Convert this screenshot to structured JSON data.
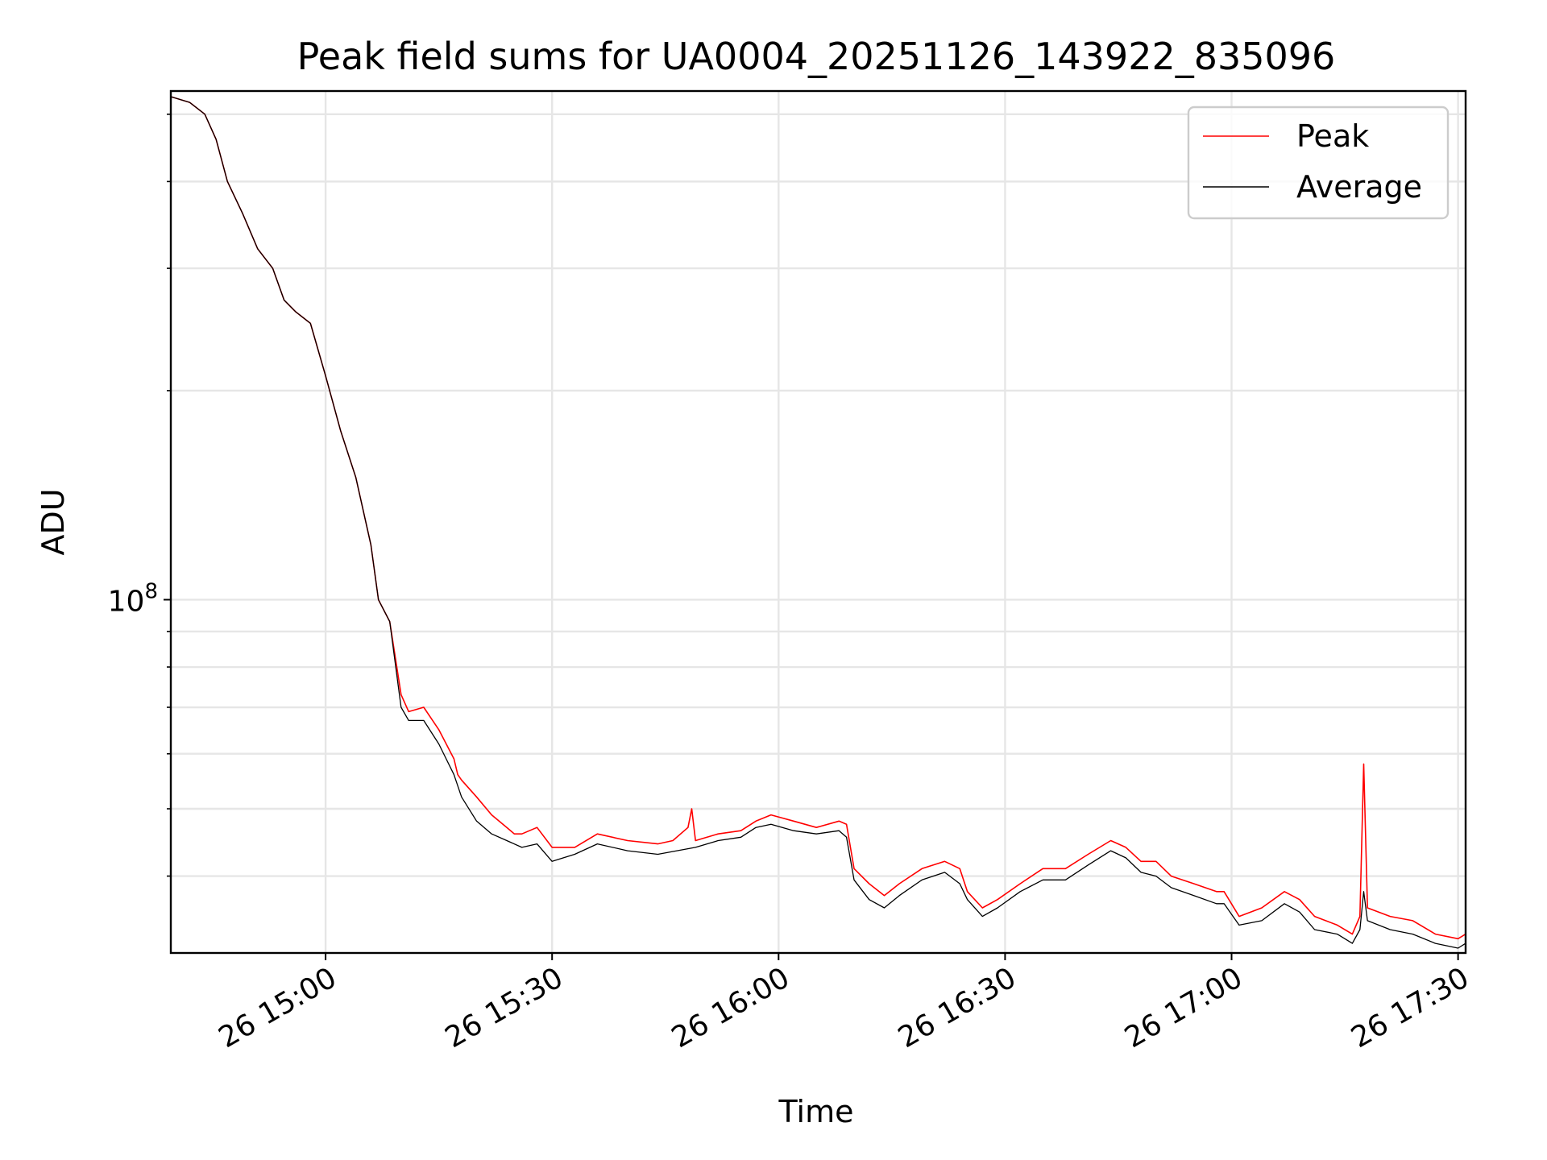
{
  "chart_data": {
    "type": "line",
    "title": "Peak field sums for UA0004_20251126_143922_835096",
    "xlabel": "Time",
    "ylabel": "ADU",
    "yscale": "log",
    "grid": true,
    "grid_minor": true,
    "legend_position": "top-right",
    "x_range": [
      "2025-11-26 14:39:30",
      "2025-11-26 17:31:00"
    ],
    "y_range": [
      31000000,
      540000000
    ],
    "x_ticks": [
      {
        "value": "2025-11-26 15:00",
        "label": "26 15:00"
      },
      {
        "value": "2025-11-26 15:30",
        "label": "26 15:30"
      },
      {
        "value": "2025-11-26 16:00",
        "label": "26 16:00"
      },
      {
        "value": "2025-11-26 16:30",
        "label": "26 16:30"
      },
      {
        "value": "2025-11-26 17:00",
        "label": "26 17:00"
      },
      {
        "value": "2025-11-26 17:30",
        "label": "26 17:30"
      }
    ],
    "y_major_ticks": [
      {
        "value": 100000000,
        "label_base": "10",
        "label_exp": "8"
      }
    ],
    "y_minor_ticks": [
      40000000,
      50000000,
      60000000,
      70000000,
      80000000,
      90000000,
      200000000,
      300000000,
      400000000,
      500000000
    ],
    "series": [
      {
        "name": "Peak",
        "color": "#ff0000",
        "x": [
          "2025-11-26 14:39:30",
          "2025-11-26 14:42:00",
          "2025-11-26 14:44:00",
          "2025-11-26 14:45:30",
          "2025-11-26 14:47:00",
          "2025-11-26 14:49:00",
          "2025-11-26 14:51:00",
          "2025-11-26 14:53:00",
          "2025-11-26 14:54:30",
          "2025-11-26 14:56:00",
          "2025-11-26 14:58:00",
          "2025-11-26 15:00:00",
          "2025-11-26 15:02:00",
          "2025-11-26 15:04:00",
          "2025-11-26 15:06:00",
          "2025-11-26 15:07:00",
          "2025-11-26 15:08:30",
          "2025-11-26 15:10:00",
          "2025-11-26 15:11:00",
          "2025-11-26 15:13:00",
          "2025-11-26 15:15:00",
          "2025-11-26 15:17:00",
          "2025-11-26 15:17:30",
          "2025-11-26 15:18:00",
          "2025-11-26 15:20:00",
          "2025-11-26 15:22:00",
          "2025-11-26 15:24:00",
          "2025-11-26 15:25:00",
          "2025-11-26 15:26:00",
          "2025-11-26 15:28:00",
          "2025-11-26 15:30:00",
          "2025-11-26 15:33:00",
          "2025-11-26 15:36:00",
          "2025-11-26 15:40:00",
          "2025-11-26 15:44:00",
          "2025-11-26 15:46:00",
          "2025-11-26 15:48:00",
          "2025-11-26 15:48:30",
          "2025-11-26 15:49:00",
          "2025-11-26 15:52:00",
          "2025-11-26 15:55:00",
          "2025-11-26 15:57:00",
          "2025-11-26 15:59:00",
          "2025-11-26 16:02:00",
          "2025-11-26 16:05:00",
          "2025-11-26 16:08:00",
          "2025-11-26 16:09:00",
          "2025-11-26 16:10:00",
          "2025-11-26 16:12:00",
          "2025-11-26 16:14:00",
          "2025-11-26 16:16:00",
          "2025-11-26 16:19:00",
          "2025-11-26 16:22:00",
          "2025-11-26 16:24:00",
          "2025-11-26 16:25:00",
          "2025-11-26 16:27:00",
          "2025-11-26 16:29:00",
          "2025-11-26 16:32:00",
          "2025-11-26 16:35:00",
          "2025-11-26 16:38:00",
          "2025-11-26 16:41:00",
          "2025-11-26 16:44:00",
          "2025-11-26 16:46:00",
          "2025-11-26 16:48:00",
          "2025-11-26 16:50:00",
          "2025-11-26 16:52:00",
          "2025-11-26 16:55:00",
          "2025-11-26 16:58:00",
          "2025-11-26 16:59:00",
          "2025-11-26 17:01:00",
          "2025-11-26 17:04:00",
          "2025-11-26 17:07:00",
          "2025-11-26 17:09:00",
          "2025-11-26 17:11:00",
          "2025-11-26 17:14:00",
          "2025-11-26 17:16:00",
          "2025-11-26 17:17:00",
          "2025-11-26 17:17:30",
          "2025-11-26 17:18:00",
          "2025-11-26 17:21:00",
          "2025-11-26 17:24:00",
          "2025-11-26 17:27:00",
          "2025-11-26 17:30:00",
          "2025-11-26 17:31:00"
        ],
        "y": [
          530000000,
          520000000,
          500000000,
          460000000,
          400000000,
          360000000,
          320000000,
          300000000,
          270000000,
          260000000,
          250000000,
          210000000,
          175000000,
          150000000,
          120000000,
          100000000,
          93000000,
          73000000,
          69000000,
          70000000,
          65000000,
          59000000,
          56000000,
          55000000,
          52000000,
          49000000,
          47000000,
          46000000,
          46000000,
          47000000,
          44000000,
          44000000,
          46000000,
          45000000,
          44500000,
          45000000,
          47000000,
          50000000,
          45000000,
          46000000,
          46500000,
          48000000,
          49000000,
          48000000,
          47000000,
          48000000,
          47500000,
          41000000,
          39000000,
          37500000,
          39000000,
          41000000,
          42000000,
          41000000,
          38000000,
          36000000,
          37000000,
          39000000,
          41000000,
          41000000,
          43000000,
          45000000,
          44000000,
          42000000,
          42000000,
          40000000,
          39000000,
          38000000,
          38000000,
          35000000,
          36000000,
          38000000,
          37000000,
          35000000,
          34000000,
          33000000,
          35000000,
          58000000,
          36000000,
          35000000,
          34500000,
          33000000,
          32500000,
          33000000
        ]
      },
      {
        "name": "Average",
        "color": "#000000",
        "x": [
          "2025-11-26 14:39:30",
          "2025-11-26 14:42:00",
          "2025-11-26 14:44:00",
          "2025-11-26 14:45:30",
          "2025-11-26 14:47:00",
          "2025-11-26 14:49:00",
          "2025-11-26 14:51:00",
          "2025-11-26 14:53:00",
          "2025-11-26 14:54:30",
          "2025-11-26 14:56:00",
          "2025-11-26 14:58:00",
          "2025-11-26 15:00:00",
          "2025-11-26 15:02:00",
          "2025-11-26 15:04:00",
          "2025-11-26 15:06:00",
          "2025-11-26 15:07:00",
          "2025-11-26 15:08:30",
          "2025-11-26 15:10:00",
          "2025-11-26 15:11:00",
          "2025-11-26 15:13:00",
          "2025-11-26 15:15:00",
          "2025-11-26 15:17:00",
          "2025-11-26 15:18:00",
          "2025-11-26 15:20:00",
          "2025-11-26 15:22:00",
          "2025-11-26 15:24:00",
          "2025-11-26 15:26:00",
          "2025-11-26 15:28:00",
          "2025-11-26 15:30:00",
          "2025-11-26 15:33:00",
          "2025-11-26 15:36:00",
          "2025-11-26 15:40:00",
          "2025-11-26 15:44:00",
          "2025-11-26 15:49:00",
          "2025-11-26 15:52:00",
          "2025-11-26 15:55:00",
          "2025-11-26 15:57:00",
          "2025-11-26 15:59:00",
          "2025-11-26 16:02:00",
          "2025-11-26 16:05:00",
          "2025-11-26 16:08:00",
          "2025-11-26 16:09:00",
          "2025-11-26 16:10:00",
          "2025-11-26 16:12:00",
          "2025-11-26 16:14:00",
          "2025-11-26 16:16:00",
          "2025-11-26 16:19:00",
          "2025-11-26 16:22:00",
          "2025-11-26 16:24:00",
          "2025-11-26 16:25:00",
          "2025-11-26 16:27:00",
          "2025-11-26 16:29:00",
          "2025-11-26 16:32:00",
          "2025-11-26 16:35:00",
          "2025-11-26 16:38:00",
          "2025-11-26 16:41:00",
          "2025-11-26 16:44:00",
          "2025-11-26 16:46:00",
          "2025-11-26 16:48:00",
          "2025-11-26 16:50:00",
          "2025-11-26 16:52:00",
          "2025-11-26 16:55:00",
          "2025-11-26 16:58:00",
          "2025-11-26 16:59:00",
          "2025-11-26 17:01:00",
          "2025-11-26 17:04:00",
          "2025-11-26 17:07:00",
          "2025-11-26 17:09:00",
          "2025-11-26 17:11:00",
          "2025-11-26 17:14:00",
          "2025-11-26 17:16:00",
          "2025-11-26 17:17:00",
          "2025-11-26 17:17:30",
          "2025-11-26 17:18:00",
          "2025-11-26 17:21:00",
          "2025-11-26 17:24:00",
          "2025-11-26 17:27:00",
          "2025-11-26 17:30:00",
          "2025-11-26 17:31:00"
        ],
        "y": [
          530000000,
          520000000,
          500000000,
          460000000,
          400000000,
          360000000,
          320000000,
          300000000,
          270000000,
          260000000,
          250000000,
          210000000,
          175000000,
          150000000,
          120000000,
          100000000,
          93000000,
          70000000,
          67000000,
          67000000,
          62000000,
          56000000,
          52000000,
          48000000,
          46000000,
          45000000,
          44000000,
          44500000,
          42000000,
          43000000,
          44500000,
          43500000,
          43000000,
          44000000,
          45000000,
          45500000,
          47000000,
          47500000,
          46500000,
          46000000,
          46500000,
          45500000,
          39500000,
          37000000,
          36000000,
          37500000,
          39500000,
          40500000,
          39000000,
          37000000,
          35000000,
          36000000,
          38000000,
          39500000,
          39500000,
          41500000,
          43500000,
          42500000,
          40500000,
          40000000,
          38500000,
          37500000,
          36500000,
          36500000,
          34000000,
          34500000,
          36500000,
          35500000,
          33500000,
          33000000,
          32000000,
          33500000,
          38000000,
          34500000,
          33500000,
          33000000,
          32000000,
          31500000,
          32000000
        ]
      }
    ]
  }
}
